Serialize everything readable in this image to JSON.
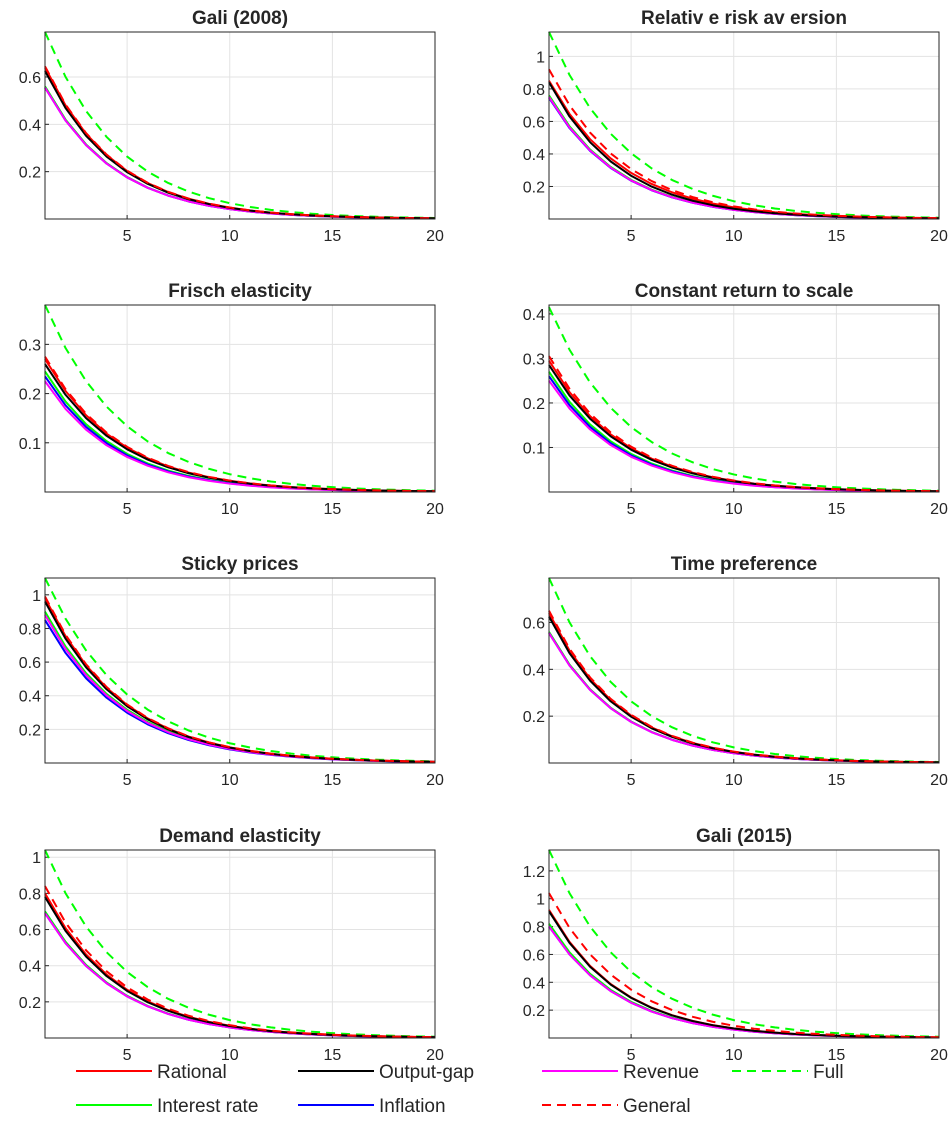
{
  "chart_data": [
    {
      "type": "line",
      "title": "Gali (2008)",
      "xlim": [
        1,
        20
      ],
      "ylim": [
        0,
        0.79
      ],
      "x_ticks": [
        "5",
        "10",
        "15",
        "20"
      ],
      "y_ticks": [
        0.2,
        0.4,
        0.6
      ],
      "y_tick_labels": [
        "0.2",
        "0.4",
        "0.6"
      ],
      "grid": true,
      "series": [
        {
          "name": "Rational",
          "start": 0.64,
          "decay": 0.75
        },
        {
          "name": "Output-gap",
          "start": 0.625,
          "decay": 0.75
        },
        {
          "name": "Revenue",
          "start": 0.555,
          "decay": 0.75
        },
        {
          "name": "Full",
          "start": 0.79,
          "decay": 0.76
        },
        {
          "name": "Interest rate",
          "start": 0.56,
          "decay": 0.75
        },
        {
          "name": "Inflation",
          "start": 0.555,
          "decay": 0.75
        },
        {
          "name": "General",
          "start": 0.645,
          "decay": 0.75
        }
      ]
    },
    {
      "type": "line",
      "title": "Relativ e risk av ersion",
      "xlim": [
        1,
        20
      ],
      "ylim": [
        0,
        1.15
      ],
      "x_ticks": [
        "5",
        "10",
        "15",
        "20"
      ],
      "y_ticks": [
        0.2,
        0.4,
        0.6,
        0.8,
        1
      ],
      "y_tick_labels": [
        "0.2",
        "0.4",
        "0.6",
        "0.8",
        "1"
      ],
      "grid": true,
      "series": [
        {
          "name": "Rational",
          "start": 0.85,
          "decay": 0.76
        },
        {
          "name": "Output-gap",
          "start": 0.84,
          "decay": 0.75
        },
        {
          "name": "Revenue",
          "start": 0.75,
          "decay": 0.75
        },
        {
          "name": "Full",
          "start": 1.15,
          "decay": 0.77
        },
        {
          "name": "Interest rate",
          "start": 0.76,
          "decay": 0.75
        },
        {
          "name": "Inflation",
          "start": 0.745,
          "decay": 0.75
        },
        {
          "name": "General",
          "start": 0.92,
          "decay": 0.76
        }
      ]
    },
    {
      "type": "line",
      "title": "Frisch elasticity",
      "xlim": [
        1,
        20
      ],
      "ylim": [
        0,
        0.38
      ],
      "x_ticks": [
        "5",
        "10",
        "15",
        "20"
      ],
      "y_ticks": [
        0.1,
        0.2,
        0.3
      ],
      "y_tick_labels": [
        "0.1",
        "0.2",
        "0.3"
      ],
      "grid": true,
      "series": [
        {
          "name": "Rational",
          "start": 0.27,
          "decay": 0.76
        },
        {
          "name": "Output-gap",
          "start": 0.26,
          "decay": 0.76
        },
        {
          "name": "Revenue",
          "start": 0.225,
          "decay": 0.75
        },
        {
          "name": "Full",
          "start": 0.38,
          "decay": 0.77
        },
        {
          "name": "Interest rate",
          "start": 0.245,
          "decay": 0.75
        },
        {
          "name": "Inflation",
          "start": 0.235,
          "decay": 0.75
        },
        {
          "name": "General",
          "start": 0.275,
          "decay": 0.76
        }
      ]
    },
    {
      "type": "line",
      "title": "Constant return to scale",
      "xlim": [
        1,
        20
      ],
      "ylim": [
        0,
        0.42
      ],
      "x_ticks": [
        "5",
        "10",
        "15",
        "20"
      ],
      "y_ticks": [
        0.1,
        0.2,
        0.3,
        0.4
      ],
      "y_tick_labels": [
        "0.1",
        "0.2",
        "0.3",
        "0.4"
      ],
      "grid": true,
      "series": [
        {
          "name": "Rational",
          "start": 0.295,
          "decay": 0.76
        },
        {
          "name": "Output-gap",
          "start": 0.285,
          "decay": 0.76
        },
        {
          "name": "Revenue",
          "start": 0.25,
          "decay": 0.75
        },
        {
          "name": "Full",
          "start": 0.415,
          "decay": 0.77
        },
        {
          "name": "Interest rate",
          "start": 0.27,
          "decay": 0.75
        },
        {
          "name": "Inflation",
          "start": 0.26,
          "decay": 0.75
        },
        {
          "name": "General",
          "start": 0.305,
          "decay": 0.76
        }
      ]
    },
    {
      "type": "line",
      "title": "Sticky prices",
      "xlim": [
        1,
        20
      ],
      "ylim": [
        0,
        1.1
      ],
      "x_ticks": [
        "5",
        "10",
        "15",
        "20"
      ],
      "y_ticks": [
        0.2,
        0.4,
        0.6,
        0.8,
        1
      ],
      "y_tick_labels": [
        "0.2",
        "0.4",
        "0.6",
        "0.8",
        "1"
      ],
      "grid": true,
      "series": [
        {
          "name": "Rational",
          "start": 0.98,
          "decay": 0.77
        },
        {
          "name": "Output-gap",
          "start": 0.96,
          "decay": 0.77
        },
        {
          "name": "Revenue",
          "start": 0.88,
          "decay": 0.77
        },
        {
          "name": "Full",
          "start": 1.1,
          "decay": 0.78
        },
        {
          "name": "Interest rate",
          "start": 0.9,
          "decay": 0.77
        },
        {
          "name": "Inflation",
          "start": 0.85,
          "decay": 0.77
        },
        {
          "name": "General",
          "start": 0.99,
          "decay": 0.77
        }
      ]
    },
    {
      "type": "line",
      "title": "Time preference",
      "xlim": [
        1,
        20
      ],
      "ylim": [
        0,
        0.79
      ],
      "x_ticks": [
        "5",
        "10",
        "15",
        "20"
      ],
      "y_ticks": [
        0.2,
        0.4,
        0.6
      ],
      "y_tick_labels": [
        "0.2",
        "0.4",
        "0.6"
      ],
      "grid": true,
      "series": [
        {
          "name": "Rational",
          "start": 0.64,
          "decay": 0.75
        },
        {
          "name": "Output-gap",
          "start": 0.625,
          "decay": 0.75
        },
        {
          "name": "Revenue",
          "start": 0.555,
          "decay": 0.75
        },
        {
          "name": "Full",
          "start": 0.79,
          "decay": 0.76
        },
        {
          "name": "Interest rate",
          "start": 0.56,
          "decay": 0.75
        },
        {
          "name": "Inflation",
          "start": 0.555,
          "decay": 0.75
        },
        {
          "name": "General",
          "start": 0.65,
          "decay": 0.75
        }
      ]
    },
    {
      "type": "line",
      "title": "Demand elasticity",
      "xlim": [
        1,
        20
      ],
      "ylim": [
        0,
        1.04
      ],
      "x_ticks": [
        "5",
        "10",
        "15",
        "20"
      ],
      "y_ticks": [
        0.2,
        0.4,
        0.6,
        0.8,
        1
      ],
      "y_tick_labels": [
        "0.2",
        "0.4",
        "0.6",
        "0.8",
        "1"
      ],
      "grid": true,
      "series": [
        {
          "name": "Rational",
          "start": 0.8,
          "decay": 0.76
        },
        {
          "name": "Output-gap",
          "start": 0.78,
          "decay": 0.76
        },
        {
          "name": "Revenue",
          "start": 0.69,
          "decay": 0.76
        },
        {
          "name": "Full",
          "start": 1.04,
          "decay": 0.77
        },
        {
          "name": "Interest rate",
          "start": 0.7,
          "decay": 0.76
        },
        {
          "name": "Inflation",
          "start": 0.69,
          "decay": 0.76
        },
        {
          "name": "General",
          "start": 0.84,
          "decay": 0.76
        }
      ]
    },
    {
      "type": "line",
      "title": "Gali (2015)",
      "xlim": [
        1,
        20
      ],
      "ylim": [
        0,
        1.35
      ],
      "x_ticks": [
        "5",
        "10",
        "15",
        "20"
      ],
      "y_ticks": [
        0.2,
        0.4,
        0.6,
        0.8,
        1,
        1.2
      ],
      "y_tick_labels": [
        "0.2",
        "0.4",
        "0.6",
        "0.8",
        "1",
        "1.2"
      ],
      "grid": true,
      "series": [
        {
          "name": "Rational",
          "start": 0.92,
          "decay": 0.75
        },
        {
          "name": "Output-gap",
          "start": 0.91,
          "decay": 0.75
        },
        {
          "name": "Revenue",
          "start": 0.8,
          "decay": 0.75
        },
        {
          "name": "Full",
          "start": 1.35,
          "decay": 0.77
        },
        {
          "name": "Interest rate",
          "start": 0.82,
          "decay": 0.75
        },
        {
          "name": "Inflation",
          "start": 0.8,
          "decay": 0.75
        },
        {
          "name": "General",
          "start": 1.04,
          "decay": 0.76
        }
      ]
    }
  ],
  "legend": {
    "placement": "bottom",
    "items": [
      {
        "label": "Rational",
        "color": "#ff0000",
        "style": "solid"
      },
      {
        "label": "Output-gap",
        "color": "#000000",
        "style": "solid"
      },
      {
        "label": "Revenue",
        "color": "#ff00ff",
        "style": "solid"
      },
      {
        "label": "Full",
        "color": "#00ff00",
        "style": "dashed"
      },
      {
        "label": "Interest rate",
        "color": "#00ff00",
        "style": "solid"
      },
      {
        "label": "Inflation",
        "color": "#0000ff",
        "style": "solid"
      },
      {
        "label": "General",
        "color": "#ff0000",
        "style": "dashed"
      }
    ]
  },
  "series_styles": {
    "Rational": {
      "color": "#ff0000",
      "dash": "solid"
    },
    "Output-gap": {
      "color": "#000000",
      "dash": "solid"
    },
    "Revenue": {
      "color": "#ff00ff",
      "dash": "solid"
    },
    "Full": {
      "color": "#00ff00",
      "dash": "dashed"
    },
    "Interest rate": {
      "color": "#00ff00",
      "dash": "solid"
    },
    "Inflation": {
      "color": "#0000ff",
      "dash": "solid"
    },
    "General": {
      "color": "#ff0000",
      "dash": "dashed"
    }
  }
}
